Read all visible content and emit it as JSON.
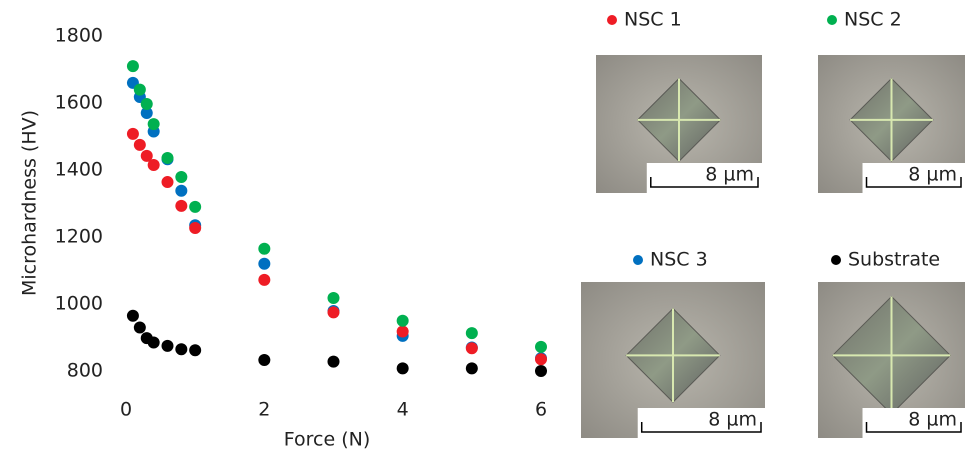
{
  "chart_data": {
    "type": "scatter",
    "x_label": "Force (N)",
    "y_label": "Microhardness (HV)",
    "xlim": [
      0,
      6
    ],
    "xticks": [
      0,
      2,
      4,
      6
    ],
    "ylim": [
      800,
      1800
    ],
    "yticks": [
      800,
      1000,
      1200,
      1400,
      1600,
      1800
    ],
    "grid": false,
    "x": [
      0.1,
      0.2,
      0.3,
      0.4,
      0.6,
      0.8,
      1,
      2,
      3,
      4,
      5,
      6
    ],
    "series": [
      {
        "name": "NSC 1",
        "color": "#ee1c25",
        "values": [
          1508,
          1475,
          1442,
          1415,
          1364,
          1293,
          1227,
          1072,
          975,
          918,
          868,
          835
        ]
      },
      {
        "name": "NSC 2",
        "color": "#00b050",
        "values": [
          1710,
          1640,
          1597,
          1537,
          1436,
          1379,
          1290,
          1165,
          1018,
          950,
          913,
          872
        ]
      },
      {
        "name": "NSC 3",
        "color": "#0070c0",
        "values": [
          1660,
          1618,
          1570,
          1515,
          1432,
          1338,
          1235,
          1120,
          979,
          905,
          870,
          838
        ]
      },
      {
        "name": "Substrate",
        "color": "#000000",
        "values": [
          965,
          930,
          898,
          885,
          875,
          865,
          862,
          833,
          828,
          808,
          808,
          800
        ]
      }
    ]
  },
  "micrographs": [
    {
      "scale_bar": "8 µm"
    },
    {
      "scale_bar": "8 µm"
    },
    {
      "scale_bar": "8 µm"
    },
    {
      "scale_bar": "8 µm"
    }
  ]
}
